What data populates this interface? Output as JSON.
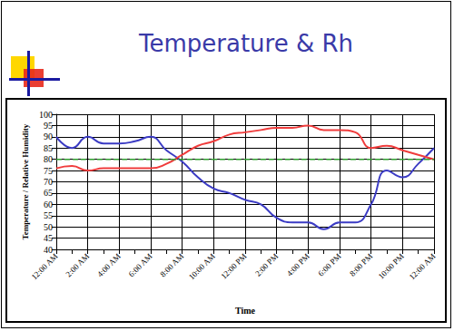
{
  "chart_data": {
    "type": "line",
    "title": "Temperature & Rh",
    "x_label": "Time",
    "y_label": "Temperature / Relative Humidity",
    "categories": [
      "12:00 AM",
      null,
      "2:00 AM",
      null,
      "4:00 AM",
      null,
      "6:00 AM",
      null,
      "8:00 AM",
      null,
      "10:00 AM",
      null,
      "12:00 PM",
      null,
      "2:00 PM",
      null,
      "4:00 PM",
      null,
      "6:00 PM",
      null,
      "8:00 PM",
      null,
      "10:00 PM",
      null,
      "12:00 AM"
    ],
    "series": [
      {
        "color": "#3b3bc4",
        "line_style": "solid",
        "marker": "none",
        "values": [
          90,
          85,
          90,
          87,
          87,
          88,
          90,
          84,
          79,
          72,
          67,
          65,
          62,
          60,
          54,
          52,
          52,
          49,
          52,
          52,
          60,
          75,
          72,
          78,
          85
        ]
      },
      {
        "color": "#f03c3c",
        "line_style": "solid",
        "marker": "none",
        "values": [
          76,
          77,
          75,
          76,
          76,
          76,
          76,
          78,
          82,
          86,
          88,
          91,
          92,
          93,
          94,
          94,
          95,
          93,
          93,
          92,
          85,
          86,
          84,
          82,
          80
        ]
      },
      {
        "color": "#2e9e2e",
        "line_style": "dashed",
        "marker": "none",
        "values": [
          80,
          80,
          80,
          80,
          80,
          80,
          80,
          80,
          80,
          80,
          80,
          80,
          80,
          80,
          80,
          80,
          80,
          80,
          80,
          80,
          80,
          80,
          80,
          80,
          80
        ]
      }
    ],
    "ylim": [
      40,
      100
    ],
    "yticks": [
      40,
      45,
      50,
      55,
      60,
      65,
      70,
      75,
      80,
      85,
      90,
      95,
      100
    ],
    "grid": true
  }
}
